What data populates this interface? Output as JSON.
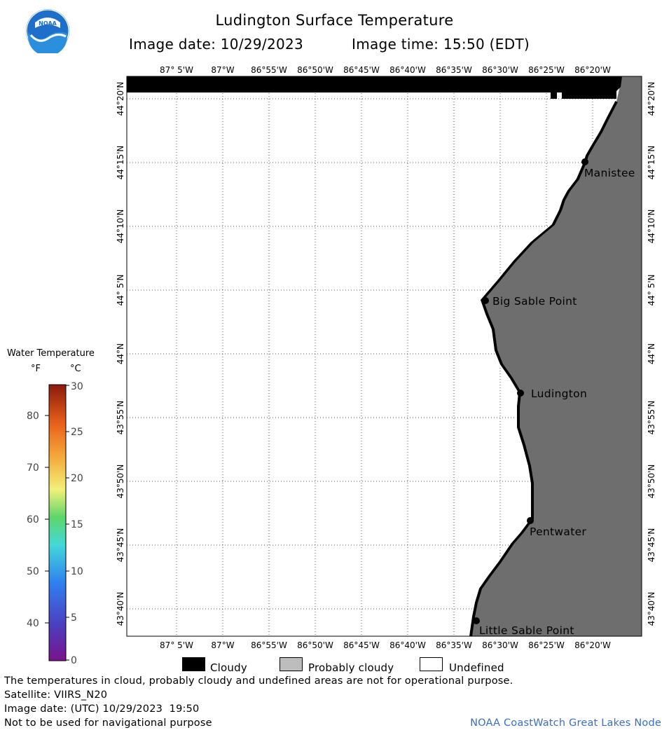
{
  "header": {
    "title": "Ludington Surface Temperature",
    "image_date": "Image date: 10/29/2023",
    "image_time": "Image time: 15:50 (EDT)"
  },
  "logo": {
    "text": "NOAA"
  },
  "map": {
    "lon_labels": [
      "87° 5'W",
      "87°W",
      "86°55'W",
      "86°50'W",
      "86°45'W",
      "86°40'W",
      "86°35'W",
      "86°30'W",
      "86°25'W",
      "86°20'W"
    ],
    "lat_labels": [
      "44°20'N",
      "44°15'N",
      "44°10'N",
      "44° 5'N",
      "44°N",
      "43°55'N",
      "43°50'N",
      "43°45'N",
      "43°40'N"
    ],
    "places": [
      {
        "name": "Manistee"
      },
      {
        "name": "Big Sable Point"
      },
      {
        "name": "Ludington"
      },
      {
        "name": "Pentwater"
      },
      {
        "name": "Little Sable Point"
      }
    ],
    "colors": {
      "land": "#6e6e6e",
      "cloudy": "#000000",
      "water": "#ffffff",
      "grid": "#555555"
    }
  },
  "color_legend": {
    "title": "Water Temperature",
    "unit_f": "°F",
    "unit_c": "°C",
    "f_ticks": [
      "80",
      "70",
      "60",
      "50",
      "40"
    ],
    "c_ticks": [
      "30",
      "25",
      "20",
      "15",
      "10",
      "5",
      "0"
    ]
  },
  "mask_legend": [
    {
      "label": "Cloudy",
      "color": "#000000"
    },
    {
      "label": "Probably cloudy",
      "color": "#bdbdbd"
    },
    {
      "label": "Undefined",
      "color": "#ffffff"
    }
  ],
  "footer": {
    "note": "The temperatures in cloud, probably cloudy and undefined areas are not for operational purpose.",
    "satellite": "Satellite: VIIRS_N20",
    "utc_date": "Image date: (UTC) 10/29/2023  19:50",
    "disclaimer": "Not to be used for navigational purpose",
    "credit": "NOAA CoastWatch Great Lakes Node"
  }
}
